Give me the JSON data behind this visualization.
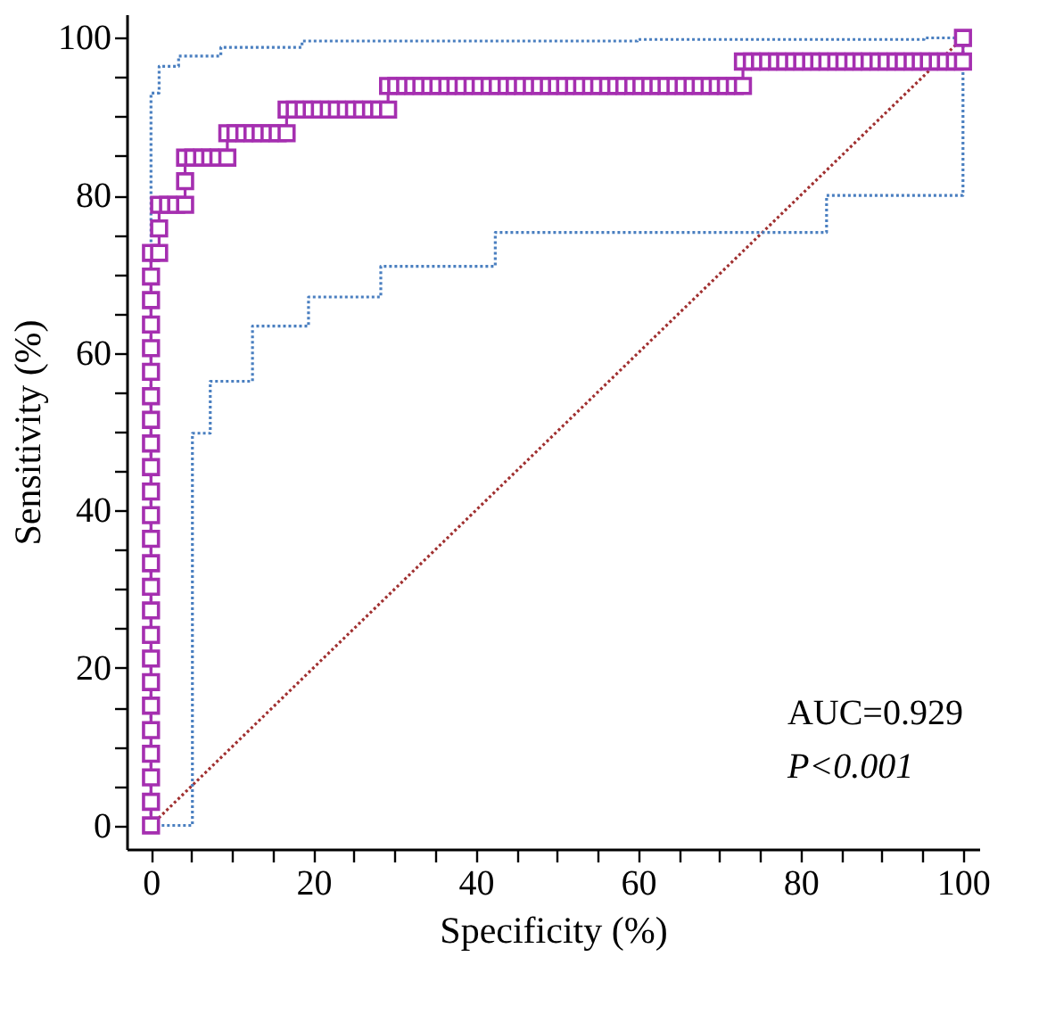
{
  "chart_data": {
    "type": "line",
    "xlabel": "Specificity (%)",
    "ylabel": "Sensitivity (%)",
    "xlim": [
      -3,
      102
    ],
    "ylim": [
      -3,
      103
    ],
    "xticks": [
      0,
      {
        "value": 5,
        "label": null
      },
      {
        "value": 10,
        "label": null
      },
      {
        "value": 15,
        "label": null
      },
      20,
      {
        "value": 25,
        "label": null
      },
      {
        "value": 30,
        "label": null
      },
      {
        "value": 35,
        "label": null
      },
      40,
      {
        "value": 45,
        "label": null
      },
      {
        "value": 50,
        "label": null
      },
      {
        "value": 55,
        "label": null
      },
      60,
      {
        "value": 65,
        "label": null
      },
      {
        "value": 70,
        "label": null
      },
      {
        "value": 75,
        "label": null
      },
      80,
      {
        "value": 85,
        "label": null
      },
      {
        "value": 90,
        "label": null
      },
      {
        "value": 95,
        "label": null
      },
      100
    ],
    "yticks": [
      0,
      {
        "value": 5,
        "label": null
      },
      {
        "value": 10,
        "label": null
      },
      {
        "value": 15,
        "label": null
      },
      20,
      {
        "value": 25,
        "label": null
      },
      {
        "value": 30,
        "label": null
      },
      {
        "value": 35,
        "label": null
      },
      40,
      {
        "value": 45,
        "label": null
      },
      {
        "value": 50,
        "label": null
      },
      {
        "value": 55,
        "label": null
      },
      60,
      {
        "value": 65,
        "label": null
      },
      {
        "value": 70,
        "label": null
      },
      {
        "value": 75,
        "label": null
      },
      80,
      {
        "value": 85,
        "label": null
      },
      {
        "value": 90,
        "label": null
      },
      {
        "value": 95,
        "label": null
      },
      100
    ],
    "grid": false,
    "annotations": [
      "AUC=0.929",
      "P<0.001"
    ],
    "series": [
      {
        "type": "line",
        "color": "#a03030",
        "line_style": "dotted",
        "marker": "none",
        "x": [
          0,
          100
        ],
        "values": [
          0,
          100
        ]
      },
      {
        "type": "line",
        "color": "#4a7fc0",
        "line_style": "dotted",
        "marker": "none",
        "x": [
          0,
          0,
          1.0,
          1.0,
          3.4,
          3.4,
          8.6,
          8.6,
          18.6,
          18.6,
          59.9,
          59.9,
          95.2,
          95.2,
          100
        ],
        "values": [
          0,
          93.0,
          93.0,
          96.4,
          96.4,
          97.7,
          97.7,
          98.8,
          98.8,
          99.6,
          99.6,
          99.8,
          99.8,
          100,
          100
        ]
      },
      {
        "type": "line",
        "color": "#4a7fc0",
        "line_style": "dotted",
        "marker": "none",
        "x": [
          0,
          5.1,
          5.1,
          7.3,
          7.3,
          12.5,
          12.5,
          19.4,
          19.4,
          28.3,
          28.3,
          42.4,
          42.4,
          83.2,
          83.2,
          100,
          100
        ],
        "values": [
          0,
          0,
          49.8,
          49.8,
          56.4,
          56.4,
          63.4,
          63.4,
          67.1,
          67.1,
          71.0,
          71.0,
          75.3,
          75.3,
          80.0,
          80.0,
          100
        ]
      },
      {
        "type": "line",
        "color": "#a52fb0",
        "line_style": "solid",
        "marker": "square",
        "x": [
          0,
          0,
          0,
          0,
          0,
          0,
          0,
          0,
          0,
          0,
          0,
          0,
          0,
          0,
          0,
          0,
          0,
          0,
          0,
          0,
          0,
          0,
          0,
          0,
          0,
          1.0,
          1.0,
          1.0,
          2.1,
          3.1,
          4.2,
          4.2,
          4.2,
          5.2,
          6.3,
          7.3,
          8.3,
          9.4,
          9.4,
          10.4,
          11.5,
          12.5,
          13.5,
          14.6,
          15.6,
          16.7,
          16.7,
          17.7,
          18.8,
          19.8,
          20.8,
          21.9,
          22.9,
          24.0,
          25.0,
          26.0,
          27.1,
          28.1,
          29.2,
          29.2,
          30.2,
          31.3,
          32.3,
          33.3,
          34.4,
          35.4,
          36.5,
          37.5,
          38.5,
          39.6,
          40.6,
          41.7,
          42.7,
          43.8,
          44.8,
          45.8,
          46.9,
          47.9,
          49.0,
          50.0,
          51.0,
          52.1,
          53.1,
          54.2,
          55.2,
          56.3,
          57.3,
          58.3,
          59.4,
          60.4,
          61.5,
          62.5,
          63.5,
          64.6,
          65.6,
          66.7,
          67.7,
          68.8,
          69.8,
          70.8,
          71.9,
          72.9,
          72.9,
          74.0,
          75.0,
          76.0,
          77.1,
          78.1,
          79.2,
          80.2,
          81.3,
          82.3,
          83.3,
          84.4,
          85.4,
          86.5,
          87.5,
          88.5,
          89.6,
          90.6,
          91.7,
          92.7,
          93.8,
          94.8,
          95.8,
          96.9,
          97.9,
          99.0,
          100,
          100
        ],
        "values": [
          0,
          3.0,
          6.1,
          9.1,
          12.1,
          15.2,
          18.2,
          21.2,
          24.2,
          27.3,
          30.3,
          33.3,
          36.4,
          39.4,
          42.4,
          45.5,
          48.5,
          51.5,
          54.5,
          57.6,
          60.6,
          63.6,
          66.7,
          69.7,
          72.7,
          72.7,
          75.8,
          78.8,
          78.8,
          78.8,
          78.8,
          81.8,
          84.8,
          84.8,
          84.8,
          84.8,
          84.8,
          84.8,
          87.9,
          87.9,
          87.9,
          87.9,
          87.9,
          87.9,
          87.9,
          87.9,
          90.9,
          90.9,
          90.9,
          90.9,
          90.9,
          90.9,
          90.9,
          90.9,
          90.9,
          90.9,
          90.9,
          90.9,
          90.9,
          93.9,
          93.9,
          93.9,
          93.9,
          93.9,
          93.9,
          93.9,
          93.9,
          93.9,
          93.9,
          93.9,
          93.9,
          93.9,
          93.9,
          93.9,
          93.9,
          93.9,
          93.9,
          93.9,
          93.9,
          93.9,
          93.9,
          93.9,
          93.9,
          93.9,
          93.9,
          93.9,
          93.9,
          93.9,
          93.9,
          93.9,
          93.9,
          93.9,
          93.9,
          93.9,
          93.9,
          93.9,
          93.9,
          93.9,
          93.9,
          93.9,
          93.9,
          93.9,
          97.0,
          97.0,
          97.0,
          97.0,
          97.0,
          97.0,
          97.0,
          97.0,
          97.0,
          97.0,
          97.0,
          97.0,
          97.0,
          97.0,
          97.0,
          97.0,
          97.0,
          97.0,
          97.0,
          97.0,
          97.0,
          97.0,
          97.0,
          97.0,
          97.0,
          97.0,
          97.0,
          100
        ]
      }
    ]
  }
}
